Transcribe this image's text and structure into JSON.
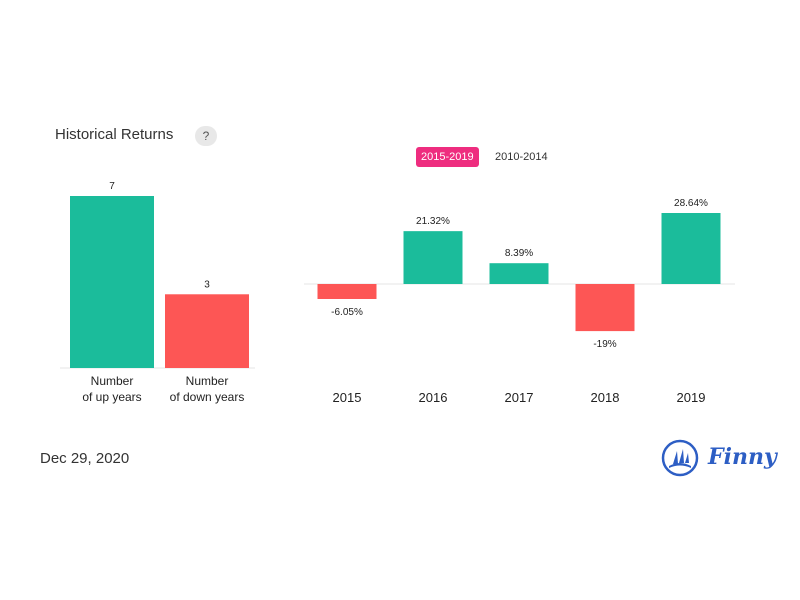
{
  "header": {
    "title": "Historical Returns",
    "help_icon": "question-icon",
    "help_label": "?"
  },
  "tabs": [
    {
      "label": "2015-2019",
      "active": true
    },
    {
      "label": "2010-2014",
      "active": false
    }
  ],
  "colors": {
    "positive": "#1bbc9b",
    "negative": "#fd5655",
    "tab_active": "#ee2d7f",
    "brand": "#2d5ec4"
  },
  "chart_data": [
    {
      "type": "bar",
      "categories": [
        [
          "Number",
          "of up years"
        ],
        [
          "Number",
          "of down years"
        ]
      ],
      "values": [
        7,
        3
      ],
      "value_labels": [
        "7",
        "3"
      ],
      "title": "",
      "ylim": [
        0,
        7
      ]
    },
    {
      "type": "bar",
      "categories": [
        "2015",
        "2016",
        "2017",
        "2018",
        "2019"
      ],
      "values": [
        -6.05,
        21.32,
        8.39,
        -19,
        28.64
      ],
      "value_labels": [
        "-6.05%",
        "21.32%",
        "8.39%",
        "-19%",
        "28.64%"
      ],
      "title": "",
      "ylim": [
        -19,
        28.64
      ]
    }
  ],
  "footer": {
    "date": "Dec 29, 2020",
    "brand_name": "Finny",
    "brand_icon": "sailboat-logo-icon"
  }
}
